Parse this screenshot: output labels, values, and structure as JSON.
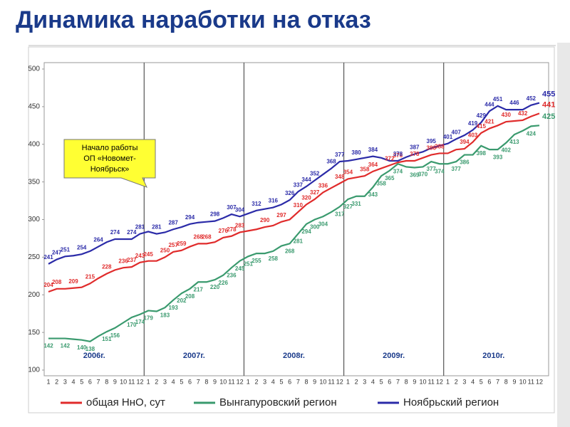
{
  "chart_data": {
    "type": "line",
    "title": "Динамика наработки на отказ",
    "annotation": [
      "Начало работы",
      "ОП «Новомет-",
      "Ноябрьск»"
    ],
    "year_labels": [
      "2006г.",
      "2007г.",
      "2008г.",
      "2009г.",
      "2010г."
    ],
    "categories": [
      "1",
      "2",
      "3",
      "4",
      "5",
      "6",
      "7",
      "8",
      "9",
      "10",
      "11",
      "12",
      "1",
      "2",
      "3",
      "4",
      "5",
      "6",
      "7",
      "8",
      "9",
      "10",
      "11",
      "12",
      "1",
      "2",
      "3",
      "4",
      "5",
      "6",
      "7",
      "8",
      "9",
      "10",
      "11",
      "12",
      "1",
      "2",
      "3",
      "4",
      "5",
      "6",
      "7",
      "8",
      "9",
      "10",
      "11",
      "12",
      "1",
      "2",
      "3",
      "4",
      "5",
      "6",
      "7",
      "8",
      "9",
      "10",
      "11",
      "12"
    ],
    "ylim": [
      100,
      500
    ],
    "yticks": [
      100,
      150,
      200,
      250,
      300,
      350,
      400,
      450,
      500
    ],
    "grid": false,
    "legend": "bottom",
    "series": [
      {
        "name": "общая НнО, сут",
        "color": "#e02b2b",
        "values": [
          204,
          208,
          208,
          209,
          210,
          215,
          222,
          228,
          233,
          236,
          237,
          243,
          245,
          245,
          250,
          257,
          259,
          264,
          268,
          268,
          270,
          276,
          278,
          283,
          285,
          287,
          290,
          292,
          297,
          300,
          310,
          320,
          327,
          336,
          342,
          348,
          354,
          356,
          358,
          364,
          368,
          372,
          376,
          378,
          378,
          382,
          386,
          388,
          388,
          393,
          394,
          403,
          415,
          421,
          425,
          430,
          431,
          432,
          437,
          441
        ],
        "value_labels": [
          "204",
          "208",
          null,
          "209",
          null,
          "215",
          null,
          "228",
          null,
          "236",
          "237",
          "243",
          "245",
          null,
          "250",
          "257",
          "259",
          null,
          "268",
          "268",
          null,
          "276",
          "278",
          "283",
          null,
          null,
          "290",
          null,
          "297",
          null,
          "310",
          "320",
          "327",
          "336",
          null,
          "348",
          "354",
          null,
          "358",
          "364",
          null,
          "372",
          "376",
          null,
          "378",
          null,
          "386",
          "388",
          null,
          null,
          "394",
          "403",
          "415",
          "421",
          null,
          "430",
          null,
          "432",
          null,
          "441"
        ]
      },
      {
        "name": "Вынгапуровский регион",
        "color": "#3a9a6e",
        "values": [
          142,
          142,
          142,
          141,
          140,
          138,
          145,
          151,
          156,
          163,
          170,
          174,
          179,
          178,
          183,
          193,
          202,
          208,
          217,
          217,
          220,
          226,
          236,
          245,
          251,
          255,
          255,
          258,
          265,
          268,
          281,
          294,
          300,
          304,
          310,
          317,
          327,
          331,
          331,
          343,
          358,
          365,
          374,
          370,
          369,
          370,
          377,
          374,
          374,
          377,
          386,
          386,
          398,
          393,
          393,
          402,
          413,
          418,
          424,
          425
        ],
        "value_labels": [
          "142",
          null,
          "142",
          null,
          "140",
          "138",
          null,
          "151",
          "156",
          null,
          "170",
          "174",
          "179",
          null,
          "183",
          "193",
          "202",
          "208",
          "217",
          null,
          "220",
          "226",
          "236",
          "245",
          "251",
          "255",
          null,
          "258",
          null,
          "268",
          "281",
          "294",
          "300",
          "304",
          null,
          "317",
          "327",
          "331",
          null,
          "343",
          "358",
          "365",
          "374",
          null,
          "369",
          "370",
          "377",
          "374",
          null,
          "377",
          "386",
          null,
          "398",
          null,
          "393",
          "402",
          "413",
          null,
          "424",
          "425"
        ]
      },
      {
        "name": "Ноябрьский регион",
        "color": "#2b2ba8",
        "values": [
          241,
          247,
          251,
          252,
          254,
          258,
          264,
          270,
          274,
          274,
          274,
          281,
          284,
          281,
          283,
          287,
          290,
          294,
          296,
          297,
          298,
          302,
          307,
          304,
          308,
          312,
          314,
          316,
          320,
          326,
          337,
          344,
          352,
          360,
          368,
          377,
          378,
          380,
          382,
          384,
          382,
          378,
          378,
          383,
          387,
          390,
          395,
          398,
          401,
          407,
          412,
          419,
          429,
          444,
          451,
          446,
          446,
          446,
          452,
          455
        ],
        "value_labels": [
          "241",
          "247",
          "251",
          null,
          "254",
          null,
          "264",
          null,
          "274",
          null,
          "274",
          "281",
          null,
          "281",
          null,
          "287",
          null,
          "294",
          null,
          null,
          "298",
          null,
          "307",
          "304",
          null,
          "312",
          null,
          "316",
          null,
          "326",
          "337",
          "344",
          "352",
          null,
          "368",
          "377",
          null,
          "380",
          null,
          "384",
          null,
          null,
          "378",
          null,
          "387",
          null,
          "395",
          null,
          "401",
          "407",
          null,
          "419",
          "429",
          "444",
          "451",
          null,
          "446",
          null,
          "452",
          "455"
        ]
      }
    ]
  }
}
